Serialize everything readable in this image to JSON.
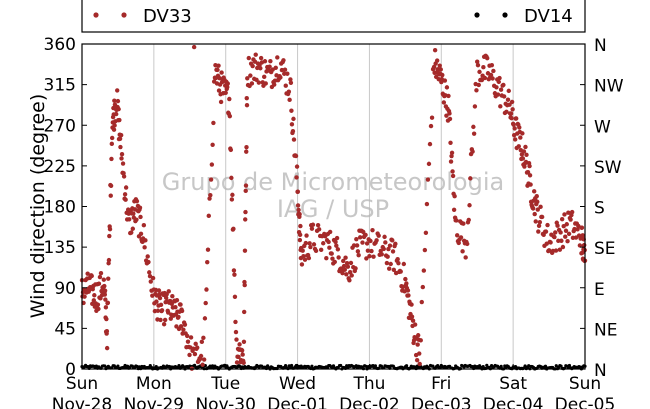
{
  "chart_data": {
    "type": "scatter",
    "ylabel": "Wind direction (degree)",
    "watermark": [
      "Grupo de Micrometeorologia",
      "IAG / USP"
    ],
    "ylim": [
      0,
      360
    ],
    "y_ticks": [
      0,
      45,
      90,
      135,
      180,
      225,
      270,
      315,
      360
    ],
    "right_ticks": [
      "N",
      "NE",
      "E",
      "SE",
      "S",
      "SW",
      "W",
      "NW",
      "N"
    ],
    "x_range_days": [
      "Nov-28",
      "Dec-05"
    ],
    "x_ticks": [
      {
        "day": "Sun",
        "date": "Nov-28"
      },
      {
        "day": "Mon",
        "date": "Nov-29"
      },
      {
        "day": "Tue",
        "date": "Nov-30"
      },
      {
        "day": "Wed",
        "date": "Dec-01"
      },
      {
        "day": "Thu",
        "date": "Dec-02"
      },
      {
        "day": "Fri",
        "date": "Dec-03"
      },
      {
        "day": "Sat",
        "date": "Dec-04"
      },
      {
        "day": "Sun",
        "date": "Dec-05"
      }
    ],
    "grid": "vertical",
    "legend_placement": "top",
    "series": [
      {
        "name": "DV33",
        "color": "#a52a2a",
        "description_points_day_degree": [
          [
            0.0,
            85
          ],
          [
            0.1,
            90
          ],
          [
            0.2,
            80
          ],
          [
            0.3,
            95
          ],
          [
            0.35,
            40
          ],
          [
            0.42,
            270
          ],
          [
            0.48,
            300
          ],
          [
            0.55,
            240
          ],
          [
            0.65,
            160
          ],
          [
            0.75,
            175
          ],
          [
            0.85,
            150
          ],
          [
            1.0,
            80
          ],
          [
            1.1,
            65
          ],
          [
            1.2,
            70
          ],
          [
            1.3,
            60
          ],
          [
            1.4,
            55
          ],
          [
            1.55,
            10
          ],
          [
            1.7,
            20
          ],
          [
            1.85,
            330
          ],
          [
            1.95,
            310
          ],
          [
            2.05,
            300
          ],
          [
            2.15,
            25
          ],
          [
            2.25,
            15
          ],
          [
            2.3,
            330
          ],
          [
            2.45,
            335
          ],
          [
            2.6,
            325
          ],
          [
            2.75,
            340
          ],
          [
            2.9,
            310
          ],
          [
            3.0,
            200
          ],
          [
            3.05,
            125
          ],
          [
            3.2,
            145
          ],
          [
            3.4,
            140
          ],
          [
            3.55,
            130
          ],
          [
            3.7,
            110
          ],
          [
            3.85,
            135
          ],
          [
            4.0,
            140
          ],
          [
            4.2,
            130
          ],
          [
            4.35,
            125
          ],
          [
            4.5,
            95
          ],
          [
            4.6,
            50
          ],
          [
            4.7,
            15
          ],
          [
            4.9,
            340
          ],
          [
            5.0,
            320
          ],
          [
            5.1,
            290
          ],
          [
            5.2,
            160
          ],
          [
            5.35,
            140
          ],
          [
            5.5,
            330
          ],
          [
            5.65,
            330
          ],
          [
            5.8,
            310
          ],
          [
            5.95,
            290
          ],
          [
            6.05,
            260
          ],
          [
            6.15,
            240
          ],
          [
            6.25,
            200
          ],
          [
            6.35,
            170
          ],
          [
            6.5,
            140
          ],
          [
            6.65,
            150
          ],
          [
            6.8,
            160
          ],
          [
            6.95,
            145
          ],
          [
            7.0,
            120
          ]
        ]
      },
      {
        "name": "DV14",
        "color": "#000000",
        "description_points_day_degree": [
          [
            0.0,
            2
          ],
          [
            1.0,
            2
          ],
          [
            2.0,
            1
          ],
          [
            3.0,
            2
          ],
          [
            4.0,
            2
          ],
          [
            5.0,
            1
          ],
          [
            6.0,
            2
          ],
          [
            7.0,
            2
          ]
        ]
      }
    ]
  }
}
